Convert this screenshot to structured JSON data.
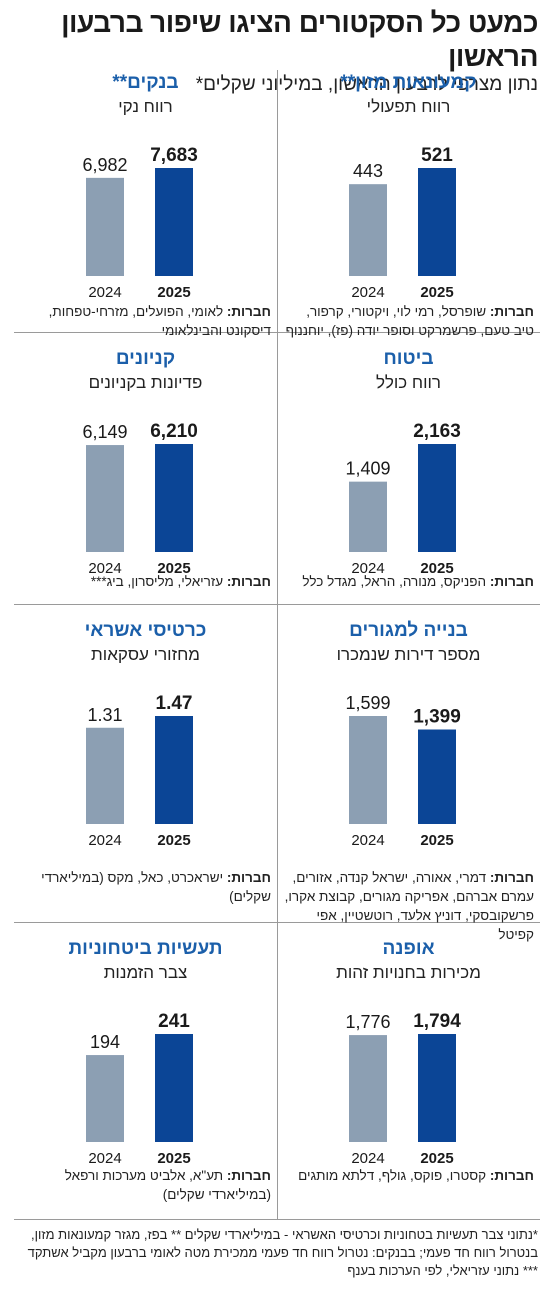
{
  "title": "כמעט כל הסקטורים הציגו שיפור ברבעון הראשון",
  "subtitle": "נתון מצרפי לרבעון הראשון, במיליוני שקלים*",
  "colors": {
    "bar_2024": "#8c9fb3",
    "bar_2025": "#0b4596",
    "panel_title": "#1b5faa"
  },
  "footer_note": "*נתוני צבר תעשיות בטחוניות וכרטיסי האשראי - במיליארדי שקלים ** בפז, מגזר קמעונאות מזון, בנטרול רווח חד פעמי; בבנקים: נטרול רווח חד פעמי ממכירת מטה לאומי ברבעון מקביל אשתקד *** נתוני עזריאלי, לפי הערכות בענף",
  "companies_label": "חברות:",
  "chart_data": [
    {
      "type": "bar",
      "title": "קמעונאות מזון**",
      "metric": "רווח תפעולי",
      "categories": [
        "2024",
        "2025"
      ],
      "values": [
        443,
        521
      ],
      "value_labels": [
        "443",
        "521"
      ],
      "companies": "שופרסל, רמי לוי, ויקטורי, קרפור, טיב טעם, פרשמרקט וסופר יודה (פז), יוחננוף"
    },
    {
      "type": "bar",
      "title": "בנקים**",
      "metric": "רווח נקי",
      "categories": [
        "2024",
        "2025"
      ],
      "values": [
        6982,
        7683
      ],
      "value_labels": [
        "6,982",
        "7,683"
      ],
      "companies": "לאומי, הפועלים, מזרחי-טפחות, דיסקונט והבינלאומי"
    },
    {
      "type": "bar",
      "title": "ביטוח",
      "metric": "רווח כולל",
      "categories": [
        "2024",
        "2025"
      ],
      "values": [
        1409,
        2163
      ],
      "value_labels": [
        "1,409",
        "2,163"
      ],
      "companies": "הפניקס, מנורה, הראל, מגדל כלל"
    },
    {
      "type": "bar",
      "title": "קניונים",
      "metric": "פדיונות בקניונים",
      "categories": [
        "2024",
        "2025"
      ],
      "values": [
        6149,
        6210
      ],
      "value_labels": [
        "6,149",
        "6,210"
      ],
      "companies": "עזריאלי, מליסרון, ביג***"
    },
    {
      "type": "bar",
      "title": "בנייה למגורים",
      "metric": "מספר דירות שנמכרו",
      "categories": [
        "2024",
        "2025"
      ],
      "values": [
        1599,
        1399
      ],
      "value_labels": [
        "1,599",
        "1,399"
      ],
      "companies": "דמרי, אאורה, ישראל קנדה, אזורים, עמרם אברהם, אפריקה מגורים, קבוצת אקרו, פרשקובסקי, דוניץ אלעד, רוטשטיין, אפי קפיטל"
    },
    {
      "type": "bar",
      "title": "כרטיסי אשראי",
      "metric": "מחזורי עסקאות",
      "categories": [
        "2024",
        "2025"
      ],
      "values": [
        1.31,
        1.47
      ],
      "value_labels": [
        "1.31",
        "1.47"
      ],
      "companies": "ישראכרט, כאל, מקס (במיליארדי שקלים)"
    },
    {
      "type": "bar",
      "title": "אופנה",
      "metric": "מכירות בחנויות זהות",
      "categories": [
        "2024",
        "2025"
      ],
      "values": [
        1776,
        1794
      ],
      "value_labels": [
        "1,776",
        "1,794"
      ],
      "companies": "קסטרו, פוקס, גולף, דלתא מותגים"
    },
    {
      "type": "bar",
      "title": "תעשיות ביטחוניות",
      "metric": "צבר הזמנות",
      "categories": [
        "2024",
        "2025"
      ],
      "values": [
        194,
        241
      ],
      "value_labels": [
        "194",
        "241"
      ],
      "companies": "תע\"א, אלביט מערכות ורפאל (במיליארדי שקלים)"
    }
  ]
}
